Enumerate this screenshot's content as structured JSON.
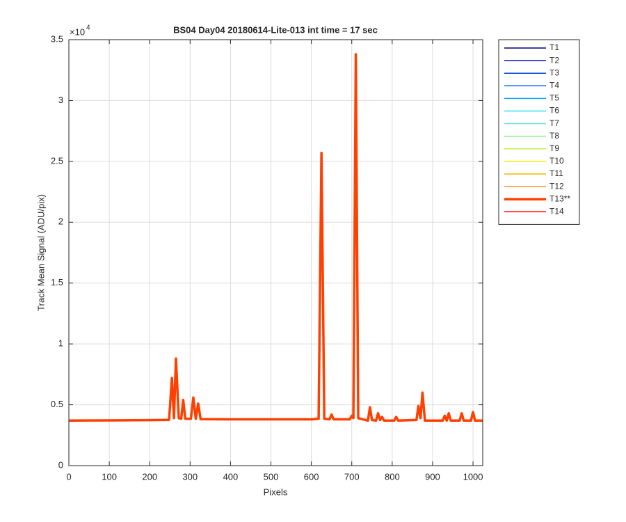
{
  "chart_data": {
    "type": "line",
    "title": "BS04 Day04 20180614-Lite-013 int time = 17 sec",
    "xlabel": "Pixels",
    "ylabel": "Track Mean Signal (ADU/pix)",
    "y_multiplier": {
      "base": "×10",
      "exponent": "4"
    },
    "x": [
      0,
      100,
      200,
      248,
      255,
      260,
      265,
      272,
      278,
      283,
      288,
      302,
      308,
      314,
      320,
      326,
      400,
      500,
      600,
      618,
      625,
      632,
      645,
      650,
      655,
      695,
      700,
      704,
      710,
      716,
      740,
      745,
      750,
      760,
      765,
      770,
      775,
      780,
      805,
      810,
      815,
      860,
      865,
      870,
      875,
      881,
      925,
      930,
      935,
      940,
      945,
      967,
      972,
      977,
      995,
      1000,
      1005,
      1024
    ],
    "series": [
      {
        "name": "T1",
        "color": "#000080",
        "linewidth": 1.5,
        "values": [
          3700,
          3720,
          3740,
          3760,
          7200,
          3900,
          8800,
          3900,
          3850,
          5400,
          3850,
          3850,
          5600,
          3850,
          5100,
          3820,
          3800,
          3800,
          3800,
          3850,
          25700,
          3850,
          3800,
          4200,
          3800,
          3800,
          4100,
          3900,
          33800,
          3900,
          3700,
          4800,
          3750,
          3700,
          4300,
          3750,
          4000,
          3700,
          3700,
          4000,
          3700,
          3750,
          4900,
          3900,
          6000,
          3700,
          3700,
          4100,
          3700,
          4300,
          3700,
          3700,
          4300,
          3700,
          3700,
          4400,
          3700,
          3700
        ]
      },
      {
        "name": "T2",
        "color": "#0010c0",
        "linewidth": 1.5,
        "values": [
          3700,
          3720,
          3740,
          3760,
          7200,
          3900,
          8800,
          3900,
          3850,
          5400,
          3850,
          3850,
          5600,
          3850,
          5100,
          3820,
          3800,
          3800,
          3800,
          3850,
          25700,
          3850,
          3800,
          4200,
          3800,
          3800,
          4100,
          3900,
          33800,
          3900,
          3700,
          4800,
          3750,
          3700,
          4300,
          3750,
          4000,
          3700,
          3700,
          4000,
          3700,
          3750,
          4900,
          3900,
          6000,
          3700,
          3700,
          4100,
          3700,
          4300,
          3700,
          3700,
          4300,
          3700,
          3700,
          4400,
          3700,
          3700
        ]
      },
      {
        "name": "T3",
        "color": "#0040e0",
        "linewidth": 1.5,
        "values": [
          3700,
          3720,
          3740,
          3760,
          7200,
          3900,
          8800,
          3900,
          3850,
          5400,
          3850,
          3850,
          5600,
          3850,
          5100,
          3820,
          3800,
          3800,
          3800,
          3850,
          25700,
          3850,
          3800,
          4200,
          3800,
          3800,
          4100,
          3900,
          33800,
          3900,
          3700,
          4800,
          3750,
          3700,
          4300,
          3750,
          4000,
          3700,
          3700,
          4000,
          3700,
          3750,
          4900,
          3900,
          6000,
          3700,
          3700,
          4100,
          3700,
          4300,
          3700,
          3700,
          4300,
          3700,
          3700,
          4400,
          3700,
          3700
        ]
      },
      {
        "name": "T4",
        "color": "#0070f0",
        "linewidth": 1.5,
        "values": [
          3700,
          3720,
          3740,
          3760,
          7200,
          3900,
          8800,
          3900,
          3850,
          5400,
          3850,
          3850,
          5600,
          3850,
          5100,
          3820,
          3800,
          3800,
          3800,
          3850,
          25700,
          3850,
          3800,
          4200,
          3800,
          3800,
          4100,
          3900,
          33800,
          3900,
          3700,
          4800,
          3750,
          3700,
          4300,
          3750,
          4000,
          3700,
          3700,
          4000,
          3700,
          3750,
          4900,
          3900,
          6000,
          3700,
          3700,
          4100,
          3700,
          4300,
          3700,
          3700,
          4300,
          3700,
          3700,
          4400,
          3700,
          3700
        ]
      },
      {
        "name": "T5",
        "color": "#10a8f8",
        "linewidth": 1.5,
        "values": [
          3700,
          3720,
          3740,
          3760,
          7200,
          3900,
          8800,
          3900,
          3850,
          5400,
          3850,
          3850,
          5600,
          3850,
          5100,
          3820,
          3800,
          3800,
          3800,
          3850,
          25700,
          3850,
          3800,
          4200,
          3800,
          3800,
          4100,
          3900,
          33800,
          3900,
          3700,
          4800,
          3750,
          3700,
          4300,
          3750,
          4000,
          3700,
          3700,
          4000,
          3700,
          3750,
          4900,
          3900,
          6000,
          3700,
          3700,
          4100,
          3700,
          4300,
          3700,
          3700,
          4300,
          3700,
          3700,
          4400,
          3700,
          3700
        ]
      },
      {
        "name": "T6",
        "color": "#30e0f0",
        "linewidth": 1.5,
        "values": [
          3700,
          3720,
          3740,
          3760,
          7200,
          3900,
          8800,
          3900,
          3850,
          5400,
          3850,
          3850,
          5600,
          3850,
          5100,
          3820,
          3800,
          3800,
          3800,
          3850,
          25700,
          3850,
          3800,
          4200,
          3800,
          3800,
          4100,
          3900,
          33800,
          3900,
          3700,
          4800,
          3750,
          3700,
          4300,
          3750,
          4000,
          3700,
          3700,
          4000,
          3700,
          3750,
          4900,
          3900,
          6000,
          3700,
          3700,
          4100,
          3700,
          4300,
          3700,
          3700,
          4300,
          3700,
          3700,
          4400,
          3700,
          3700
        ]
      },
      {
        "name": "T7",
        "color": "#70e8d0",
        "linewidth": 1.5,
        "values": [
          3700,
          3720,
          3740,
          3760,
          7200,
          3900,
          8800,
          3900,
          3850,
          5400,
          3850,
          3850,
          5600,
          3850,
          5100,
          3820,
          3800,
          3800,
          3800,
          3850,
          25700,
          3850,
          3800,
          4200,
          3800,
          3800,
          4100,
          3900,
          33800,
          3900,
          3700,
          4800,
          3750,
          3700,
          4300,
          3750,
          4000,
          3700,
          3700,
          4000,
          3700,
          3750,
          4900,
          3900,
          6000,
          3700,
          3700,
          4100,
          3700,
          4300,
          3700,
          3700,
          4300,
          3700,
          3700,
          4400,
          3700,
          3700
        ]
      },
      {
        "name": "T8",
        "color": "#88f088",
        "linewidth": 1.5,
        "values": [
          3700,
          3720,
          3740,
          3760,
          7200,
          3900,
          8800,
          3900,
          3850,
          5400,
          3850,
          3850,
          5600,
          3850,
          5100,
          3820,
          3800,
          3800,
          3800,
          3850,
          25700,
          3850,
          3800,
          4200,
          3800,
          3800,
          4100,
          3900,
          33800,
          3900,
          3700,
          4800,
          3750,
          3700,
          4300,
          3750,
          4000,
          3700,
          3700,
          4000,
          3700,
          3750,
          4900,
          3900,
          6000,
          3700,
          3700,
          4100,
          3700,
          4300,
          3700,
          3700,
          4300,
          3700,
          3700,
          4400,
          3700,
          3700
        ]
      },
      {
        "name": "T9",
        "color": "#c8f048",
        "linewidth": 1.5,
        "values": [
          3700,
          3720,
          3740,
          3760,
          7200,
          3900,
          8800,
          3900,
          3850,
          5400,
          3850,
          3850,
          5600,
          3850,
          5100,
          3820,
          3800,
          3800,
          3800,
          3850,
          25700,
          3850,
          3800,
          4200,
          3800,
          3800,
          4100,
          3900,
          33800,
          3900,
          3700,
          4800,
          3750,
          3700,
          4300,
          3750,
          4000,
          3700,
          3700,
          4000,
          3700,
          3750,
          4900,
          3900,
          6000,
          3700,
          3700,
          4100,
          3700,
          4300,
          3700,
          3700,
          4300,
          3700,
          3700,
          4400,
          3700,
          3700
        ]
      },
      {
        "name": "T10",
        "color": "#f8f000",
        "linewidth": 1.5,
        "values": [
          3700,
          3720,
          3740,
          3760,
          7200,
          3900,
          8800,
          3900,
          3850,
          5400,
          3850,
          3850,
          5600,
          3850,
          5100,
          3820,
          3800,
          3800,
          3800,
          3850,
          25700,
          3850,
          3800,
          4200,
          3800,
          3800,
          4100,
          3900,
          33800,
          3900,
          3700,
          4800,
          3750,
          3700,
          4300,
          3750,
          4000,
          3700,
          3700,
          4000,
          3700,
          3750,
          4900,
          3900,
          6000,
          3700,
          3700,
          4100,
          3700,
          4300,
          3700,
          3700,
          4300,
          3700,
          3700,
          4400,
          3700,
          3700
        ]
      },
      {
        "name": "T11",
        "color": "#f0b810",
        "linewidth": 1.5,
        "values": [
          3700,
          3720,
          3740,
          3760,
          7200,
          3900,
          8800,
          3900,
          3850,
          5400,
          3850,
          3850,
          5600,
          3850,
          5100,
          3820,
          3800,
          3800,
          3800,
          3850,
          25700,
          3850,
          3800,
          4200,
          3800,
          3800,
          4100,
          3900,
          33800,
          3900,
          3700,
          4800,
          3750,
          3700,
          4300,
          3750,
          4000,
          3700,
          3700,
          4000,
          3700,
          3750,
          4900,
          3900,
          6000,
          3700,
          3700,
          4100,
          3700,
          4300,
          3700,
          3700,
          4300,
          3700,
          3700,
          4400,
          3700,
          3700
        ]
      },
      {
        "name": "T12",
        "color": "#ff9020",
        "linewidth": 1.5,
        "values": [
          3700,
          3720,
          3740,
          3760,
          7200,
          3900,
          8800,
          3900,
          3850,
          5400,
          3850,
          3850,
          5600,
          3850,
          5100,
          3820,
          3800,
          3800,
          3800,
          3850,
          25700,
          3850,
          3800,
          4200,
          3800,
          3800,
          4100,
          3900,
          33800,
          3900,
          3700,
          4800,
          3750,
          3700,
          4300,
          3750,
          4000,
          3700,
          3700,
          4000,
          3700,
          3750,
          4900,
          3900,
          6000,
          3700,
          3700,
          4100,
          3700,
          4300,
          3700,
          3700,
          4300,
          3700,
          3700,
          4400,
          3700,
          3700
        ]
      },
      {
        "name": "T13**",
        "color": "#ff4000",
        "linewidth": 3.5,
        "values": [
          3700,
          3720,
          3740,
          3760,
          7200,
          3900,
          8800,
          3900,
          3850,
          5400,
          3850,
          3850,
          5600,
          3850,
          5100,
          3820,
          3800,
          3800,
          3800,
          3850,
          25700,
          3850,
          3800,
          4200,
          3800,
          3800,
          4100,
          3900,
          33800,
          3900,
          3700,
          4800,
          3750,
          3700,
          4300,
          3750,
          4000,
          3700,
          3700,
          4000,
          3700,
          3750,
          4900,
          3900,
          6000,
          3700,
          3700,
          4100,
          3700,
          4300,
          3700,
          3700,
          4300,
          3700,
          3700,
          4400,
          3700,
          3700
        ]
      },
      {
        "name": "T14",
        "color": "#ff0000",
        "linewidth": 1.5,
        "values": [
          3700,
          3720,
          3740,
          3760,
          7200,
          3900,
          8800,
          3900,
          3850,
          5400,
          3850,
          3850,
          5600,
          3850,
          5100,
          3820,
          3800,
          3800,
          3800,
          3850,
          25700,
          3850,
          3800,
          4200,
          3800,
          3800,
          4100,
          3900,
          33800,
          3900,
          3700,
          4800,
          3750,
          3700,
          4300,
          3750,
          4000,
          3700,
          3700,
          4000,
          3700,
          3750,
          4900,
          3900,
          6000,
          3700,
          3700,
          4100,
          3700,
          4300,
          3700,
          3700,
          4300,
          3700,
          3700,
          4400,
          3700,
          3700
        ]
      }
    ],
    "xlim": [
      0,
      1024
    ],
    "xticks": [
      0,
      100,
      200,
      300,
      400,
      500,
      600,
      700,
      800,
      900,
      1000
    ],
    "ylim": [
      0,
      35000
    ],
    "yticks": [
      {
        "value": 0,
        "label": "0"
      },
      {
        "value": 5000,
        "label": "0.5"
      },
      {
        "value": 10000,
        "label": "1"
      },
      {
        "value": 15000,
        "label": "1.5"
      },
      {
        "value": 20000,
        "label": "2"
      },
      {
        "value": 25000,
        "label": "2.5"
      },
      {
        "value": 30000,
        "label": "3"
      },
      {
        "value": 35000,
        "label": "3.5"
      }
    ],
    "grid": true,
    "legend": "outside-right"
  }
}
